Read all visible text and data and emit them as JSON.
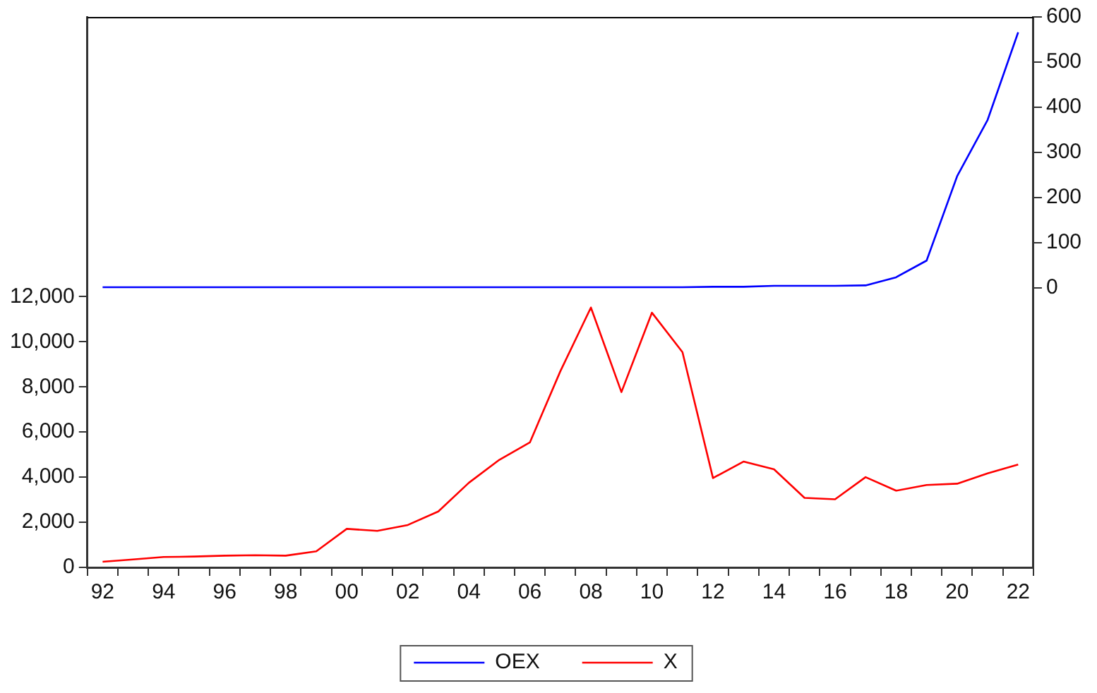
{
  "chart_data": {
    "type": "line",
    "categories": [
      "92",
      null,
      "94",
      null,
      "96",
      null,
      "98",
      null,
      "00",
      null,
      "02",
      null,
      "04",
      null,
      "06",
      null,
      "08",
      null,
      "10",
      null,
      "12",
      null,
      "14",
      null,
      "16",
      null,
      "18",
      null,
      "20",
      null,
      "22"
    ],
    "series": [
      {
        "name": "OEX",
        "color": "#0000ff",
        "axis": "y2",
        "values": [
          1,
          1,
          1,
          1,
          1,
          1,
          1,
          1,
          1,
          1,
          1,
          1,
          1,
          1,
          1,
          1,
          1,
          1,
          1,
          1,
          2,
          2,
          4,
          4,
          4,
          5,
          23,
          60,
          247,
          372,
          566
        ]
      },
      {
        "name": "X",
        "color": "#ff0000",
        "values": [
          250,
          350,
          460,
          480,
          520,
          540,
          520,
          710,
          1710,
          1620,
          1880,
          2480,
          3750,
          4770,
          5540,
          8700,
          11520,
          7770,
          11290,
          9540,
          3960,
          4690,
          4350,
          3080,
          3020,
          4000,
          3400,
          3650,
          3710,
          4170,
          4560
        ]
      }
    ],
    "ylim": [
      0,
      24400
    ],
    "yticks": [
      {
        "value": 0,
        "label": "0"
      },
      {
        "value": 2000,
        "label": "2,000"
      },
      {
        "value": 4000,
        "label": "4,000"
      },
      {
        "value": 6000,
        "label": "6,000"
      },
      {
        "value": 8000,
        "label": "8,000"
      },
      {
        "value": 10000,
        "label": "10,000"
      },
      {
        "value": 12000,
        "label": "12,000"
      }
    ],
    "y2lim": [
      -620,
      600
    ],
    "y2ticks": [
      0,
      100,
      200,
      300,
      400,
      500,
      600
    ],
    "grid": false,
    "legend": "bottom",
    "marker": "none",
    "line_style": "solid"
  }
}
